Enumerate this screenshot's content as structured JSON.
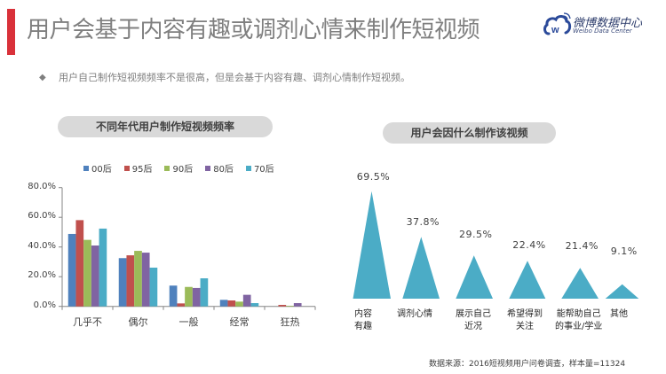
{
  "header": {
    "title": "用户会基于内容有趣或调剂心情来制作短视频",
    "accent_color": "#d9313a",
    "logo": {
      "name": "微博数据中心",
      "subtitle": "Weibo Data Center"
    }
  },
  "summary": {
    "bullet": "◆",
    "text": "用户自己制作短视频频率不是很高，但是会基于内容有趣、调剂心情制作短视频。"
  },
  "footer": {
    "source": "数据来源：2016短视频用户问卷调查，样本量=11324"
  },
  "chart_data": [
    {
      "type": "bar",
      "title": "不同年代用户制作短视频频率",
      "xlabel": "",
      "ylabel": "",
      "ylim": [
        0,
        80
      ],
      "yticks": [
        "0.0%",
        "20.0%",
        "40.0%",
        "60.0%",
        "80.0%"
      ],
      "grid": false,
      "legend_position": "top",
      "categories": [
        "几乎不",
        "偶尔",
        "一般",
        "经常",
        "狂热"
      ],
      "series": [
        {
          "name": "00后",
          "color": "#4F81BD",
          "values": [
            48.8,
            32.5,
            14.0,
            4.4,
            0.0
          ]
        },
        {
          "name": "95后",
          "color": "#C0504D",
          "values": [
            58.1,
            34.4,
            2.0,
            4.0,
            1.0
          ]
        },
        {
          "name": "90后",
          "color": "#9BBB59",
          "values": [
            44.8,
            37.4,
            13.1,
            3.2,
            0.4
          ]
        },
        {
          "name": "80后",
          "color": "#8064A2",
          "values": [
            41.0,
            36.2,
            12.4,
            7.8,
            2.2
          ]
        },
        {
          "name": "70后",
          "color": "#4BACC6",
          "values": [
            52.4,
            26.1,
            18.9,
            2.2,
            0.0
          ]
        }
      ]
    },
    {
      "type": "bar",
      "subtype": "triangle",
      "title": "用户会因什么制作该视频",
      "color": "#4BACC6",
      "categories": [
        "内容有趣",
        "调剂心情",
        "展示自己近况",
        "希望得到关注",
        "能帮助自己的事业/学业",
        "其他"
      ],
      "category_lines": [
        [
          "内容",
          "有趣"
        ],
        [
          "调剂心情"
        ],
        [
          "展示自己",
          "近况"
        ],
        [
          "希望得到",
          "关注"
        ],
        [
          "能帮助自己",
          "的事业/学业"
        ],
        [
          "其他"
        ]
      ],
      "values": [
        69.5,
        37.8,
        29.5,
        22.4,
        21.4,
        9.1
      ],
      "labels": [
        "69.5%",
        "37.8%",
        "29.5%",
        "22.4%",
        "21.4%",
        "9.1%"
      ]
    }
  ]
}
